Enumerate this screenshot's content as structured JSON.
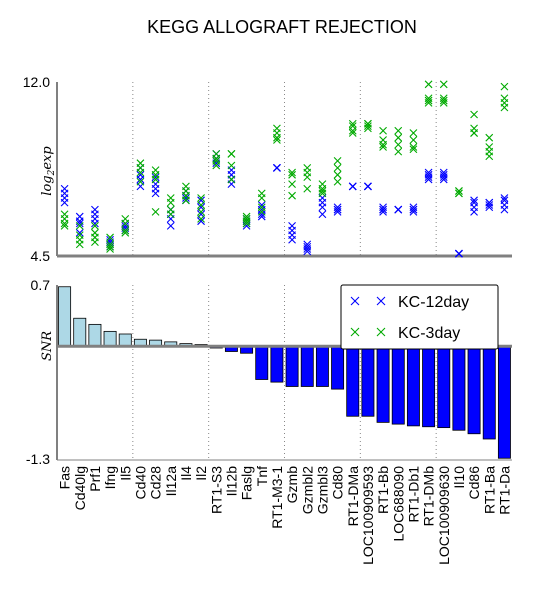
{
  "chart_data": [
    {
      "type": "scatter",
      "title": "KEGG ALLOGRAFT REJECTION",
      "ylabel": "log2exp",
      "ylim": [
        4.5,
        12.0
      ],
      "yticks": [
        "12.0",
        "4.5"
      ],
      "grid": "vertical dotted separators between groups of 4 genes",
      "series": [
        {
          "name": "KC-12day",
          "color": "#0000ff",
          "values": [
            [
              7.4,
              7.2,
              7.0,
              6.8
            ],
            [
              6.2,
              6.0,
              5.9,
              5.5
            ],
            [
              6.5,
              6.3,
              6.1,
              5.9
            ],
            [
              5.2,
              5.1,
              5.0,
              4.9
            ],
            [
              5.9,
              5.8,
              5.7,
              5.6
            ],
            [
              8.3,
              8.0,
              7.8,
              7.5
            ],
            [
              7.9,
              7.6,
              7.4,
              7.2
            ],
            [
              6.5,
              6.3,
              6.1,
              5.8
            ],
            [
              7.3,
              7.1,
              7.0,
              6.9
            ],
            [
              6.9,
              6.6,
              6.3,
              6.0
            ],
            [
              8.9,
              8.7,
              8.6,
              8.5
            ],
            [
              8.2,
              8.0,
              7.8,
              7.6
            ],
            [
              6.1,
              6.0,
              5.9,
              5.8
            ],
            [
              6.7,
              6.5,
              6.3,
              6.2
            ],
            [
              8.3,
              8.3,
              8.3,
              8.3
            ],
            [
              5.8,
              5.6,
              5.4,
              5.2
            ],
            [
              5.0,
              4.9,
              4.8,
              4.7
            ],
            [
              7.0,
              6.8,
              6.6,
              6.3
            ],
            [
              6.6,
              6.5,
              6.5,
              6.4
            ],
            [
              7.5,
              7.5,
              7.5,
              7.5
            ],
            [
              7.5,
              7.5,
              7.5,
              7.5
            ],
            [
              6.6,
              6.5,
              6.5,
              6.4
            ],
            [
              6.5,
              6.5,
              6.5,
              6.5
            ],
            [
              6.6,
              6.5,
              6.5,
              6.4
            ],
            [
              8.1,
              8.0,
              7.9,
              7.8
            ],
            [
              8.1,
              8.0,
              7.9,
              7.8
            ],
            [
              4.6,
              4.6,
              4.6,
              4.6
            ],
            [
              6.9,
              6.8,
              6.6,
              6.4
            ],
            [
              6.8,
              6.8,
              6.7,
              6.6
            ],
            [
              7.0,
              6.9,
              6.7,
              6.5
            ]
          ]
        },
        {
          "name": "KC-3day",
          "color": "#00aa00",
          "values": [
            [
              6.3,
              6.1,
              5.9,
              5.8
            ],
            [
              5.8,
              5.4,
              5.2,
              5.0
            ],
            [
              5.8,
              5.5,
              5.3,
              5.1
            ],
            [
              5.3,
              5.0,
              4.9,
              4.8
            ],
            [
              6.1,
              5.9,
              5.6,
              5.5
            ],
            [
              8.5,
              8.3,
              8.1,
              7.7
            ],
            [
              8.2,
              8.0,
              7.8,
              6.4
            ],
            [
              7.0,
              6.8,
              6.5,
              6.3
            ],
            [
              7.5,
              7.3,
              7.1,
              6.9
            ],
            [
              7.0,
              6.7,
              6.4,
              6.1
            ],
            [
              8.9,
              8.7,
              8.6,
              8.4
            ],
            [
              8.9,
              8.9,
              8.4,
              7.8
            ],
            [
              6.2,
              6.1,
              6.0,
              5.9
            ],
            [
              7.2,
              7.0,
              6.6,
              6.4
            ],
            [
              10.0,
              9.8,
              9.6,
              9.5
            ],
            [
              8.1,
              8.0,
              7.6,
              7.1
            ],
            [
              8.3,
              8.1,
              7.9,
              7.4
            ],
            [
              7.6,
              7.4,
              7.3,
              7.2
            ],
            [
              8.6,
              8.3,
              8.0,
              7.7
            ],
            [
              10.2,
              10.1,
              9.9,
              9.8
            ],
            [
              10.2,
              10.2,
              10.1,
              10.0
            ],
            [
              9.9,
              9.5,
              9.3,
              9.2
            ],
            [
              9.9,
              9.6,
              9.3,
              9.0
            ],
            [
              9.8,
              9.5,
              9.2,
              9.1
            ],
            [
              11.9,
              11.3,
              11.2,
              11.1
            ],
            [
              11.9,
              11.3,
              11.2,
              11.1
            ],
            [
              7.3,
              7.3,
              7.2,
              7.2
            ],
            [
              10.6,
              10.0,
              9.8,
              9.8
            ],
            [
              9.6,
              9.2,
              9.0,
              8.8
            ],
            [
              11.8,
              11.3,
              11.1,
              10.9
            ]
          ]
        }
      ]
    },
    {
      "type": "bar",
      "ylabel": "SNR",
      "ylim": [
        -1.3,
        0.7
      ],
      "yticks": [
        "0.7",
        "-1.3"
      ],
      "categories": [
        "Fas",
        "Cd40lg",
        "Prf1",
        "Ifng",
        "Il5",
        "Cd40",
        "Cd28",
        "Il12a",
        "Il4",
        "Il2",
        "RT1-S3",
        "Il12b",
        "Faslg",
        "Tnf",
        "RT1-M3-1",
        "Gzmb",
        "Gzmbl2",
        "Gzmbl3",
        "Cd80",
        "RT1-DMa",
        "LOC100909593",
        "RT1-Bb",
        "LOC688090",
        "RT1-Db1",
        "RT1-DMb",
        "LOC100909630",
        "Il10",
        "Cd86",
        "RT1-Ba",
        "RT1-Da"
      ],
      "values": [
        0.68,
        0.32,
        0.25,
        0.17,
        0.14,
        0.08,
        0.07,
        0.05,
        0.03,
        0.02,
        -0.02,
        -0.06,
        -0.08,
        -0.38,
        -0.41,
        -0.46,
        -0.46,
        -0.46,
        -0.49,
        -0.8,
        -0.8,
        -0.87,
        -0.89,
        -0.91,
        -0.92,
        -0.93,
        -0.96,
        -1.0,
        -1.06,
        -1.28
      ],
      "colors": {
        "positive": "#add8e6",
        "negative": "#0000ff"
      },
      "legend": {
        "placement": "top-right",
        "entries": [
          "KC-12day",
          "KC-3day"
        ]
      }
    }
  ]
}
